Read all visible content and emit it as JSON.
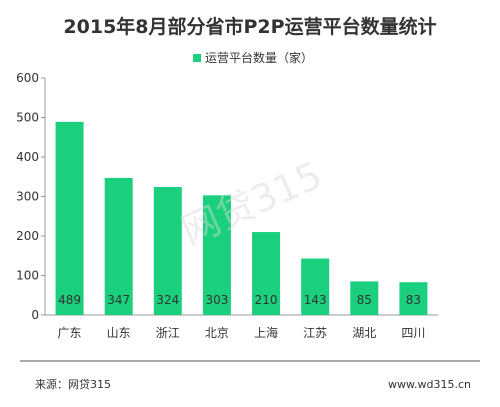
{
  "title": "2015年8月部分省市P2P运营平台数量统计",
  "legend": {
    "label": "运营平台数量（家）"
  },
  "footer": {
    "source": "来源：网贷315",
    "website": "www.wd315.cn"
  },
  "watermark": "网贷315",
  "colors": {
    "bar": "#1ad07e",
    "axis": "#999999",
    "text": "#333333",
    "divider": "#555555"
  },
  "chart_data": {
    "type": "bar",
    "title": "2015年8月部分省市P2P运营平台数量统计",
    "xlabel": "",
    "ylabel": "",
    "categories": [
      "广东",
      "山东",
      "浙江",
      "北京",
      "上海",
      "江苏",
      "湖北",
      "四川"
    ],
    "series": [
      {
        "name": "运营平台数量（家）",
        "values": [
          489,
          347,
          324,
          303,
          210,
          143,
          85,
          83
        ]
      }
    ],
    "ylim": [
      0,
      600
    ],
    "yticks": [
      0,
      100,
      200,
      300,
      400,
      500,
      600
    ],
    "grid": false,
    "legend_position": "top-center",
    "data_labels": true
  }
}
